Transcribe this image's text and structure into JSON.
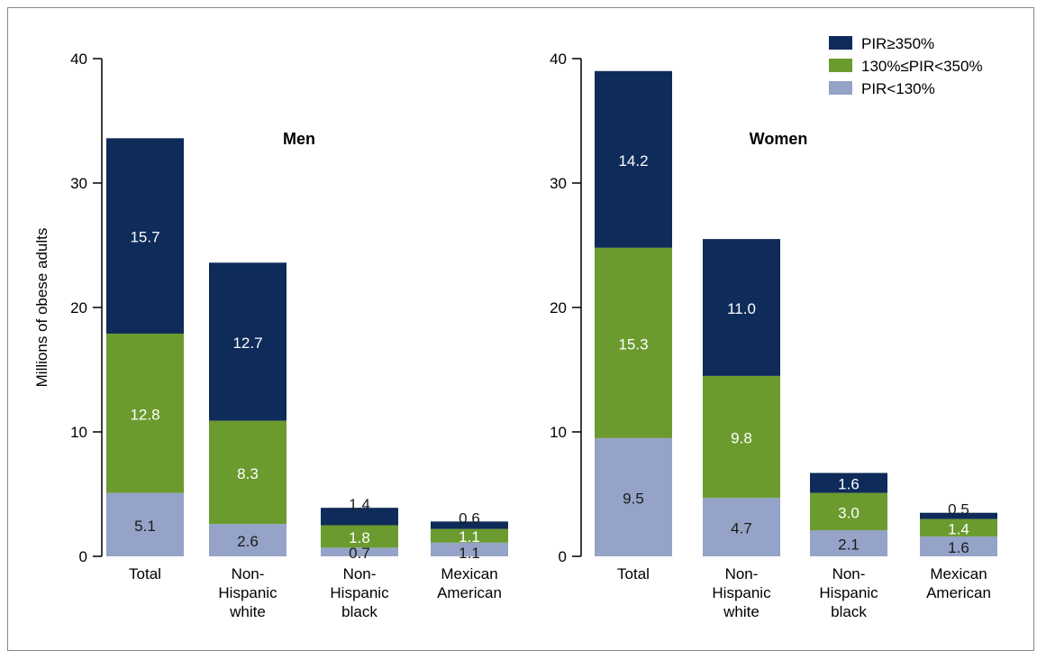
{
  "chart_data": [
    {
      "type": "bar",
      "stacked": true,
      "title": "Men",
      "ylabel": "Millions of obese adults",
      "ylim": [
        0,
        40
      ],
      "yticks": [
        0,
        10,
        20,
        30,
        40
      ],
      "categories": [
        [
          "Total"
        ],
        [
          "Non-",
          "Hispanic",
          "white"
        ],
        [
          "Non-",
          "Hispanic",
          "black"
        ],
        [
          "Mexican",
          "American"
        ]
      ],
      "series": [
        {
          "name": "PIR<130%",
          "color": "#94a3c7",
          "values": [
            5.1,
            2.6,
            0.7,
            1.1
          ]
        },
        {
          "name": "130%≤PIR<350%",
          "color": "#6b9b2e",
          "values": [
            12.8,
            8.3,
            1.8,
            1.1
          ]
        },
        {
          "name": "PIR≥350%",
          "color": "#0e2b59",
          "values": [
            15.7,
            12.7,
            1.4,
            0.6
          ]
        }
      ]
    },
    {
      "type": "bar",
      "stacked": true,
      "title": "Women",
      "ylabel": "",
      "ylim": [
        0,
        40
      ],
      "yticks": [
        0,
        10,
        20,
        30,
        40
      ],
      "categories": [
        [
          "Total"
        ],
        [
          "Non-",
          "Hispanic",
          "white"
        ],
        [
          "Non-",
          "Hispanic",
          "black"
        ],
        [
          "Mexican",
          "American"
        ]
      ],
      "series": [
        {
          "name": "PIR<130%",
          "color": "#94a3c7",
          "values": [
            9.5,
            4.7,
            2.1,
            1.6
          ]
        },
        {
          "name": "130%≤PIR<350%",
          "color": "#6b9b2e",
          "values": [
            15.3,
            9.8,
            3.0,
            1.4
          ]
        },
        {
          "name": "PIR≥350%",
          "color": "#0e2b59",
          "values": [
            14.2,
            11.0,
            1.6,
            0.5
          ]
        }
      ]
    }
  ],
  "legend": {
    "position": "top-right",
    "items": [
      {
        "label": "PIR≥350%",
        "color": "#0e2b59"
      },
      {
        "label": "130%≤PIR<350%",
        "color": "#6b9b2e"
      },
      {
        "label": "PIR<130%",
        "color": "#94a3c7"
      }
    ]
  }
}
